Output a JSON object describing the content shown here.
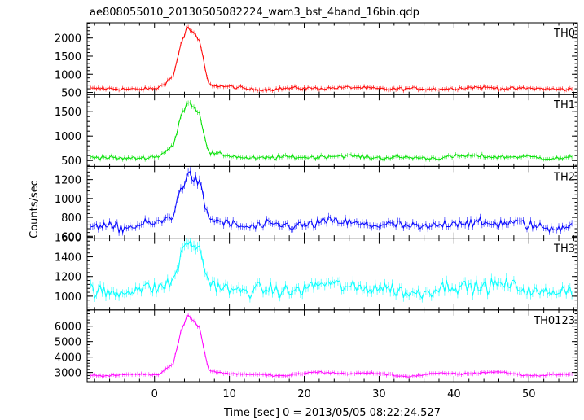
{
  "title": "ae808055010_20130505082224_wam3_bst_4band_16bin.qdp",
  "ylabel": "Counts/sec",
  "xlabel": "Time [sec] 0 = 2013/05/05 08:22:24.527",
  "chart_data": {
    "type": "line",
    "title": "ae808055010_20130505082224_wam3_bst_4band_16bin.qdp",
    "xlabel": "Time [sec] 0 = 2013/05/05 08:22:24.527",
    "ylabel": "Counts/sec",
    "xlim": [
      -9,
      56.5
    ],
    "x_ticks": [
      0,
      10,
      20,
      30,
      40,
      50
    ],
    "x_tick_labels": [
      "0",
      "10",
      "20",
      "30",
      "40",
      "50"
    ],
    "grid": false,
    "time_bin_sec": 0.25,
    "burst_peak_time_sec": 4.5,
    "panels": [
      {
        "name": "TH0",
        "color": "#ff0000",
        "ylim": [
          440,
          2420
        ],
        "yticks": [
          500,
          1000,
          1500,
          2000
        ],
        "yticklabels": [
          "500",
          "1000",
          "1500",
          "2000"
        ],
        "baseline": 610,
        "peak": 2300,
        "noise": 40
      },
      {
        "name": "TH1",
        "color": "#00e000",
        "ylim": [
          380,
          1850
        ],
        "yticks": [
          500,
          1000,
          1500
        ],
        "yticklabels": [
          "500",
          "1000",
          "1500"
        ],
        "baseline": 570,
        "peak": 1720,
        "noise": 35
      },
      {
        "name": "TH2",
        "color": "#0000ff",
        "ylim": [
          580,
          1340
        ],
        "yticks": [
          600,
          800,
          1000,
          1200
        ],
        "yticklabels": [
          "600",
          "800",
          "1000",
          "1200"
        ],
        "baseline": 725,
        "peak": 1250,
        "noise": 45
      },
      {
        "name": "TH3",
        "color": "#00ffff",
        "ylim": [
          860,
          1590
        ],
        "yticks": [
          1000,
          1200,
          1400,
          1600
        ],
        "yticklabels": [
          "1000",
          "1200",
          "1400",
          "1600"
        ],
        "baseline": 1080,
        "peak": 1520,
        "noise": 60
      },
      {
        "name": "TH0123",
        "color": "#ff00ff",
        "ylim": [
          2400,
          7050
        ],
        "yticks": [
          3000,
          4000,
          5000,
          6000
        ],
        "yticklabels": [
          "3000",
          "4000",
          "5000",
          "6000"
        ],
        "baseline": 2900,
        "peak": 6600,
        "noise": 60
      }
    ]
  }
}
